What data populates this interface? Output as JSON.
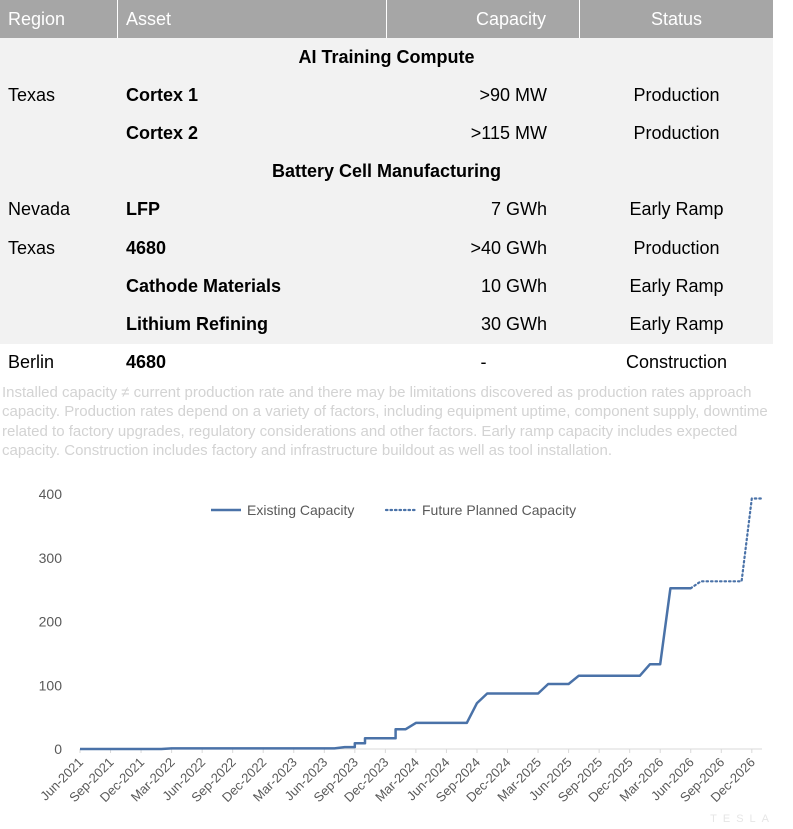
{
  "table": {
    "headers": {
      "region": "Region",
      "asset": "Asset",
      "capacity": "Capacity",
      "status": "Status"
    },
    "sections": [
      {
        "title": "AI Training Compute",
        "rows": [
          {
            "region": "Texas",
            "asset": "Cortex 1",
            "capacity": ">90 MW",
            "status": "Production"
          },
          {
            "region": "",
            "asset": "Cortex 2",
            "capacity": ">115 MW",
            "status": "Production"
          }
        ]
      },
      {
        "title": "Battery Cell Manufacturing",
        "rows": [
          {
            "region": "Nevada",
            "asset": "LFP",
            "capacity": "7 GWh",
            "status": "Early Ramp"
          },
          {
            "region": "Texas",
            "asset": "4680",
            "capacity": ">40 GWh",
            "status": "Production"
          },
          {
            "region": "",
            "asset": "Cathode Materials",
            "capacity": "10 GWh",
            "status": "Early Ramp"
          },
          {
            "region": "",
            "asset": "Lithium Refining",
            "capacity": "30 GWh",
            "status": "Early Ramp"
          },
          {
            "region": "Berlin",
            "asset": "4680",
            "capacity": "-",
            "status": "Construction"
          }
        ]
      }
    ],
    "footnote": "Installed capacity ≠ current production rate and there may be limitations discovered as production rates approach capacity. Production rates depend on a variety of factors, including equipment uptime, component supply, downtime related to factory upgrades, regulatory considerations and other factors. Early ramp capacity includes expected capacity. Construction includes factory and infrastructure buildout as well as tool installation."
  },
  "colors": {
    "header_bg": "#a6a6a6",
    "band_bg": "#f2f2f2",
    "series": "#4a72a8",
    "grid": "#d9d9d9"
  },
  "chart_data": {
    "type": "line",
    "title": "",
    "xlabel": "",
    "ylabel": "",
    "ylim": [
      0,
      400
    ],
    "yticks": [
      0,
      100,
      200,
      300,
      400
    ],
    "grid": false,
    "legend_placement": "top",
    "xticks": [
      "Jun-2021",
      "Sep-2021",
      "Dec-2021",
      "Mar-2022",
      "Jun-2022",
      "Sep-2022",
      "Dec-2022",
      "Mar-2023",
      "Jun-2023",
      "Sep-2023",
      "Dec-2023",
      "Mar-2024",
      "Jun-2024",
      "Sep-2024",
      "Dec-2024",
      "Mar-2025",
      "Jun-2025",
      "Sep-2025",
      "Dec-2025",
      "Mar-2026",
      "Jun-2026",
      "Sep-2026",
      "Dec-2026"
    ],
    "x_range": [
      "Jun-2021",
      "Jan-2027"
    ],
    "series": [
      {
        "name": "Existing Capacity",
        "style": "solid",
        "points": [
          [
            "Jun-2021",
            0
          ],
          [
            "Feb-2022",
            0
          ],
          [
            "Mar-2022",
            1
          ],
          [
            "Jul-2023",
            1
          ],
          [
            "Aug-2023",
            3
          ],
          [
            "Sep-2023",
            3
          ],
          [
            "Sep-2023",
            9
          ],
          [
            "Oct-2023",
            9
          ],
          [
            "Oct-2023",
            17
          ],
          [
            "Jan-2024",
            17
          ],
          [
            "Jan-2024",
            31
          ],
          [
            "Feb-2024",
            31
          ],
          [
            "Mar-2024",
            41
          ],
          [
            "Aug-2024",
            41
          ],
          [
            "Sep-2024",
            72
          ],
          [
            "Oct-2024",
            87
          ],
          [
            "Mar-2025",
            87
          ],
          [
            "Apr-2025",
            102
          ],
          [
            "Jun-2025",
            102
          ],
          [
            "Jul-2025",
            115
          ],
          [
            "Jan-2026",
            115
          ],
          [
            "Feb-2026",
            133
          ],
          [
            "Mar-2026",
            133
          ],
          [
            "Apr-2026",
            252
          ],
          [
            "Jun-2026",
            252
          ]
        ]
      },
      {
        "name": "Future Planned Capacity",
        "style": "dotted",
        "points": [
          [
            "Jun-2026",
            252
          ],
          [
            "Jul-2026",
            263
          ],
          [
            "Nov-2026",
            263
          ],
          [
            "Dec-2026",
            393
          ],
          [
            "Jan-2027",
            393
          ]
        ]
      }
    ]
  },
  "watermark": "TESLA"
}
